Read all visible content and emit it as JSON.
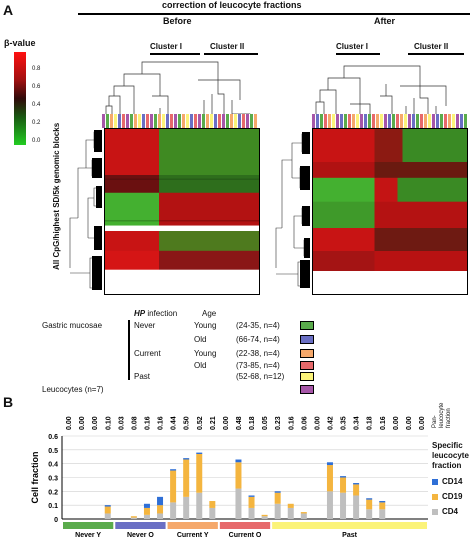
{
  "panel_a": {
    "label": "A",
    "title": "correction of leucocyte fractions",
    "before": "Before",
    "after": "After",
    "cluster1": "Cluster I",
    "cluster2": "Cluster II",
    "beta_label": "β-value",
    "beta_ticks": [
      "0.8",
      "0.6",
      "0.4",
      "0.2",
      "0.0"
    ],
    "y_label": "All CpG/highest SD/5k genomic blocks"
  },
  "legend": {
    "hp_label": "HP",
    "infection_label": " infection",
    "age_label": "Age",
    "gastric": "Gastric mucosae",
    "never": "Never",
    "current": "Current",
    "past": "Past",
    "young": "Young",
    "old": "Old",
    "leucocytes": "Leucocytes (n=7)",
    "rows": [
      {
        "range": "(24-35, n=4)",
        "color": "#5aab4c"
      },
      {
        "range": "(66-74, n=4)",
        "color": "#6a6fc4"
      },
      {
        "range": "(22-38, n=4)",
        "color": "#f5a86b"
      },
      {
        "range": "(73-85, n=4)",
        "color": "#e7696b"
      },
      {
        "range": "(52-68, n=12)",
        "color": "#fbf379"
      }
    ],
    "leuco_color": "#a656a8"
  },
  "panel_b": {
    "label": "B",
    "pan_label": [
      "Pan-",
      "leucocyte",
      "fraction"
    ],
    "specific_label": [
      "Specific",
      "leucocyte",
      "fraction"
    ],
    "ylabel": "Cell fraction",
    "yticks": [
      "0.6",
      "0.5",
      "0.4",
      "0.3",
      "0.2",
      "0.1",
      "0"
    ],
    "group_labels": [
      "Never Y",
      "Never O",
      "Current Y",
      "Current O",
      "Past"
    ],
    "group_colors": [
      "#5aab4c",
      "#6a6fc4",
      "#f5a86b",
      "#e7696b",
      "#fbf379"
    ]
  },
  "chart_data": {
    "type": "bar",
    "stacked": true,
    "ylabel": "Cell fraction",
    "ylim": [
      0,
      0.6
    ],
    "pan_leucocyte_fraction": [
      "0.00",
      "0.00",
      "0.00",
      "0.10",
      "0.03",
      "0.08",
      "0.16",
      "0.16",
      "0.44",
      "0.50",
      "0.52",
      "0.21",
      "0.00",
      "0.48",
      "0.18",
      "0.05",
      "0.23",
      "0.16",
      "0.06",
      "0.00",
      "0.42",
      "0.35",
      "0.34",
      "0.18",
      "0.16",
      "0.00",
      "0.00",
      "0.00"
    ],
    "series": [
      {
        "name": "CD4",
        "color": "#bfbfbf",
        "values": [
          0,
          0,
          0,
          0.04,
          0,
          0.01,
          0.03,
          0.04,
          0.12,
          0.16,
          0.19,
          0.08,
          0,
          0.22,
          0.08,
          0.02,
          0.11,
          0.08,
          0.04,
          0,
          0.2,
          0.19,
          0.17,
          0.07,
          0.07,
          0,
          0,
          0
        ]
      },
      {
        "name": "CD19",
        "color": "#f4b53f",
        "values": [
          0,
          0,
          0,
          0.05,
          0,
          0.01,
          0.05,
          0.06,
          0.23,
          0.27,
          0.28,
          0.05,
          0,
          0.19,
          0.08,
          0.01,
          0.08,
          0.03,
          0.01,
          0,
          0.19,
          0.11,
          0.08,
          0.07,
          0.05,
          0,
          0,
          0
        ]
      },
      {
        "name": "CD14",
        "color": "#2f6fd6",
        "values": [
          0,
          0,
          0,
          0.01,
          0,
          0,
          0.03,
          0.06,
          0.01,
          0.01,
          0.01,
          0,
          0,
          0.02,
          0.01,
          0,
          0.01,
          0,
          0,
          0,
          0.02,
          0.01,
          0.01,
          0.01,
          0.01,
          0,
          0,
          0
        ]
      }
    ],
    "legend": [
      "CD14",
      "CD19",
      "CD4"
    ]
  }
}
